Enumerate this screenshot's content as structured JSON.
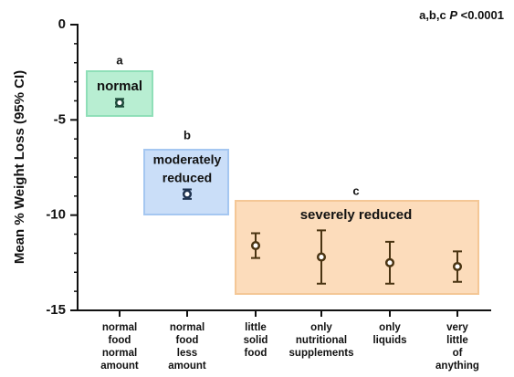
{
  "chart_data": {
    "type": "errorbar",
    "significance": {
      "groups": "a,b,c",
      "stat": "P",
      "value": "<0.0001"
    },
    "y_label": "Mean % Weight Loss (95% CI)",
    "categories": [
      [
        "normal",
        "food",
        "normal",
        "amount"
      ],
      [
        "normal",
        "food",
        "less",
        "amount"
      ],
      [
        "little",
        "solid",
        "food"
      ],
      [
        "only",
        "nutritional",
        "supplements"
      ],
      [
        "only",
        "liquids"
      ],
      [
        "very",
        "little",
        "of",
        "anything"
      ]
    ],
    "values": [
      -4.1,
      -8.9,
      -11.6,
      -12.2,
      -12.5,
      -12.7
    ],
    "errors": [
      0.2,
      0.25,
      0.65,
      1.4,
      1.1,
      0.8
    ],
    "colors": [
      "#1d4a3a",
      "#1f3350",
      "#4a3412",
      "#4a3412",
      "#4a3412",
      "#4a3412"
    ],
    "groups": [
      {
        "letter": "a",
        "label": [
          "normal"
        ],
        "color": "#b8eed2",
        "border": "#8fdfb8"
      },
      {
        "letter": "b",
        "label": [
          "moderately",
          "reduced"
        ],
        "color": "#cadef8",
        "border": "#a5c7f1"
      },
      {
        "letter": "c",
        "label": [
          "severely reduced"
        ],
        "color": "#fcdcbb",
        "border": "#f4c796"
      }
    ],
    "ylim": [
      0,
      -15
    ],
    "yticks": [
      0,
      -5,
      -10,
      -15
    ],
    "yminorticks": [
      -1,
      -2,
      -3,
      -4,
      -6,
      -7,
      -8,
      -9,
      -11,
      -12,
      -13,
      -14
    ]
  }
}
